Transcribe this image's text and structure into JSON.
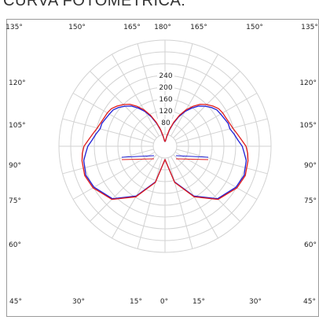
{
  "page": {
    "title": "CURVA FOTOMÉTRICA:"
  },
  "chart_data": {
    "type": "polar",
    "title": "CURVA FOTOMÉTRICA:",
    "angle_labels": {
      "top": [
        "135°",
        "150°",
        "165°",
        "180°",
        "165°",
        "150°",
        "135°"
      ],
      "bottom": [
        "45°",
        "30°",
        "15°",
        "0°",
        "15°",
        "30°",
        "45°"
      ],
      "left_side": [
        "120°",
        "105°",
        "90°",
        "75°",
        "60°"
      ],
      "right_side": [
        "120°",
        "105°",
        "90°",
        "75°",
        "60°"
      ]
    },
    "radial_axis": {
      "ticks": [
        240,
        200,
        160,
        120,
        80
      ],
      "max": 360,
      "angular_gridline_step_deg": 15
    },
    "grid": true,
    "series": [
      {
        "color": "#1f1fd6",
        "intensity_points": [
          {
            "angle": 0,
            "value": 45
          },
          {
            "angle": 15,
            "value": 125
          },
          {
            "angle": 30,
            "value": 195
          },
          {
            "angle": 45,
            "value": 252
          },
          {
            "angle": 60,
            "value": 278
          },
          {
            "angle": 70,
            "value": 286
          },
          {
            "angle": 80,
            "value": 280
          },
          {
            "angle": 85,
            "value": 270
          },
          {
            "angle": 90,
            "value": 262
          },
          {
            "angle": 95,
            "value": 248
          },
          {
            "angle": 100,
            "value": 238
          },
          {
            "angle": 105,
            "value": 228
          },
          {
            "angle": 110,
            "value": 228
          },
          {
            "angle": 115,
            "value": 222
          },
          {
            "angle": 120,
            "value": 218
          },
          {
            "angle": 125,
            "value": 215
          },
          {
            "angle": 130,
            "value": 205
          },
          {
            "angle": 135,
            "value": 192
          },
          {
            "angle": 140,
            "value": 178
          },
          {
            "angle": 145,
            "value": 158
          },
          {
            "angle": 150,
            "value": 136
          },
          {
            "angle": 155,
            "value": 110
          },
          {
            "angle": 160,
            "value": 82
          },
          {
            "angle": 165,
            "value": 55
          },
          {
            "angle": 170,
            "value": 32
          },
          {
            "angle": 175,
            "value": 18
          },
          {
            "angle": 180,
            "value": 16
          }
        ]
      },
      {
        "color": "#e01b1b",
        "intensity_points": [
          {
            "angle": 0,
            "value": 45
          },
          {
            "angle": 15,
            "value": 127
          },
          {
            "angle": 30,
            "value": 198
          },
          {
            "angle": 45,
            "value": 255
          },
          {
            "angle": 60,
            "value": 282
          },
          {
            "angle": 70,
            "value": 290
          },
          {
            "angle": 80,
            "value": 286
          },
          {
            "angle": 85,
            "value": 282
          },
          {
            "angle": 90,
            "value": 275
          },
          {
            "angle": 95,
            "value": 260
          },
          {
            "angle": 100,
            "value": 248
          },
          {
            "angle": 105,
            "value": 238
          },
          {
            "angle": 110,
            "value": 232
          },
          {
            "angle": 115,
            "value": 228
          },
          {
            "angle": 120,
            "value": 226
          },
          {
            "angle": 125,
            "value": 222
          },
          {
            "angle": 130,
            "value": 212
          },
          {
            "angle": 135,
            "value": 200
          },
          {
            "angle": 140,
            "value": 186
          },
          {
            "angle": 145,
            "value": 165
          },
          {
            "angle": 150,
            "value": 143
          },
          {
            "angle": 155,
            "value": 116
          },
          {
            "angle": 160,
            "value": 86
          },
          {
            "angle": 165,
            "value": 58
          },
          {
            "angle": 170,
            "value": 34
          },
          {
            "angle": 175,
            "value": 19
          },
          {
            "angle": 180,
            "value": 16
          }
        ]
      }
    ]
  }
}
